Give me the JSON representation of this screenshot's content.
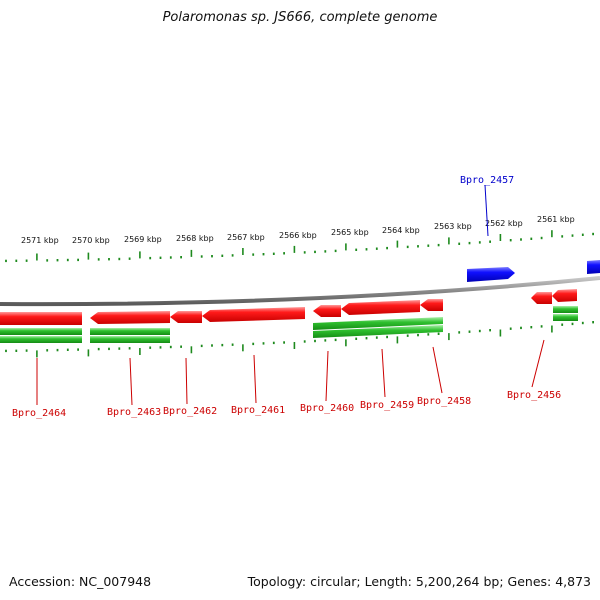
{
  "title": "Polaromonas sp. JS666, complete genome",
  "accession": "Accession: NC_007948",
  "stats": "Topology: circular; Length: 5,200,264 bp; Genes: 4,873",
  "colors": {
    "backbone": "#8a8a8a",
    "gene_red": "#ff0000",
    "gene_blue": "#0000ff",
    "gene_green": "#22bb22",
    "tick_green": "#1e8a1e",
    "label_red": "#cc0000",
    "label_blue": "#0000cc"
  },
  "kbp_labels": [
    "2571 kbp",
    "2570 kbp",
    "2569 kbp",
    "2568 kbp",
    "2567 kbp",
    "2566 kbp",
    "2565 kbp",
    "2564 kbp",
    "2563 kbp",
    "2562 kbp",
    "2561 kbp"
  ],
  "gene_labels": [
    {
      "name": "Bpro_2464",
      "color": "red"
    },
    {
      "name": "Bpro_2463",
      "color": "red"
    },
    {
      "name": "Bpro_2462",
      "color": "red"
    },
    {
      "name": "Bpro_2461",
      "color": "red"
    },
    {
      "name": "Bpro_2460",
      "color": "red"
    },
    {
      "name": "Bpro_2459",
      "color": "red"
    },
    {
      "name": "Bpro_2458",
      "color": "red"
    },
    {
      "name": "Bpro_2457",
      "color": "blue"
    },
    {
      "name": "Bpro_2456",
      "color": "red"
    }
  ]
}
